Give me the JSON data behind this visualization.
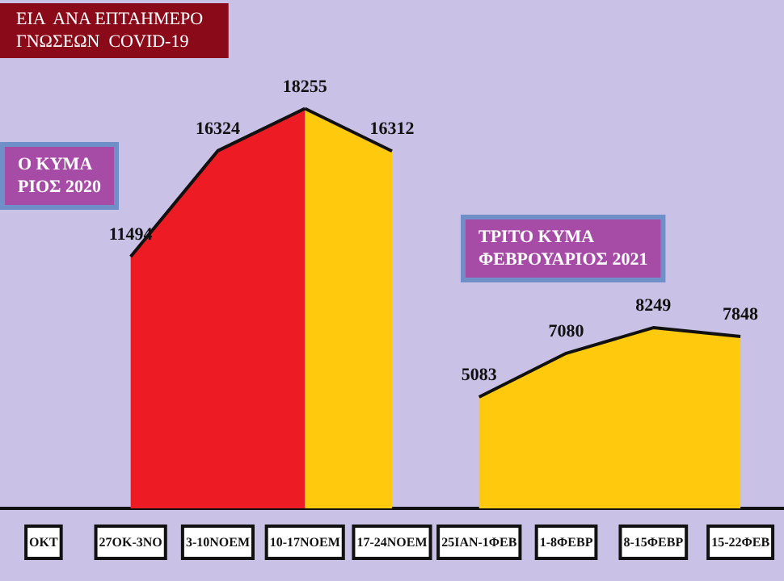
{
  "chart_data": {
    "type": "area",
    "title": "ΕΙΑ  ΑΝΑ ΕΠΤΑΗΜΕΡΟ\nΓΝΩΣΕΩΝ  COVID-19",
    "annotations": [
      "Ο ΚΥΜΑ\nΡΙΟΣ 2020",
      "ΤΡΙΤΟ ΚΥΜΑ\nΦΕΒΡΟΥΑΡΙΟΣ 2021"
    ],
    "categories": [
      "ΟΚΤ",
      "27ΟΚ-3ΝΟ",
      "3-10ΝΟΕΜ",
      "10-17ΝΟΕΜ",
      "17-24ΝΟΕΜ",
      "25ΙΑΝ-1ΦΕΒ",
      "1-8ΦΕΒΡ",
      "8-15ΦΕΒΡ",
      "15-22ΦΕΒ"
    ],
    "series": [
      {
        "color": "#ed1c24",
        "values": [
          null,
          11494,
          16324,
          18255,
          null,
          null,
          null,
          null,
          null
        ]
      },
      {
        "color": "#ffc90e",
        "values": [
          null,
          null,
          null,
          18255,
          16312,
          null,
          null,
          null,
          null
        ],
        "value_labels": [
          null,
          null,
          null,
          null,
          "16312",
          null,
          null,
          null,
          null
        ]
      },
      {
        "color": "#ffc90e",
        "values": [
          null,
          null,
          null,
          null,
          null,
          5083,
          7080,
          8249,
          7848
        ]
      }
    ],
    "data_labels": true,
    "tick_labels": "x",
    "grid": false
  }
}
